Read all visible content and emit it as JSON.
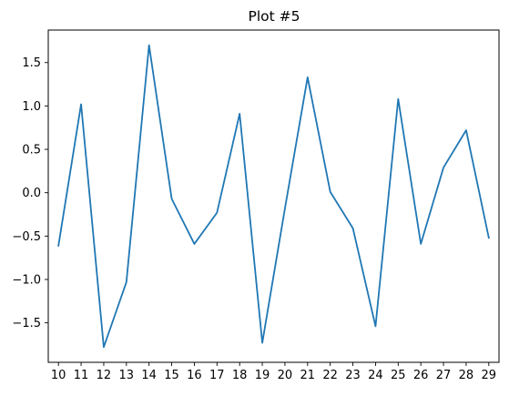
{
  "chart_data": {
    "type": "line",
    "title": "Plot #5",
    "xlabel": "",
    "ylabel": "",
    "x": [
      10,
      11,
      12,
      13,
      14,
      15,
      16,
      17,
      18,
      19,
      20,
      21,
      22,
      23,
      24,
      25,
      26,
      27,
      28,
      29
    ],
    "series": [
      {
        "values": [
          -0.61,
          1.02,
          -1.78,
          -1.03,
          1.7,
          -0.07,
          -0.59,
          -0.23,
          0.91,
          -1.73,
          -0.18,
          1.33,
          0.01,
          -0.41,
          -1.54,
          1.08,
          -0.59,
          0.29,
          0.72,
          -0.52
        ],
        "color": "#1f77b4"
      }
    ],
    "xlim": [
      9.55,
      29.45
    ],
    "ylim": [
      -1.955,
      1.875
    ],
    "xticks": [
      "10",
      "11",
      "12",
      "13",
      "14",
      "15",
      "16",
      "17",
      "18",
      "19",
      "20",
      "21",
      "22",
      "23",
      "24",
      "25",
      "26",
      "27",
      "28",
      "29"
    ],
    "yticks": [
      "−1.5",
      "−1.0",
      "−0.5",
      "0.0",
      "0.5",
      "1.0",
      "1.5"
    ],
    "grid": false,
    "legend": "none"
  }
}
